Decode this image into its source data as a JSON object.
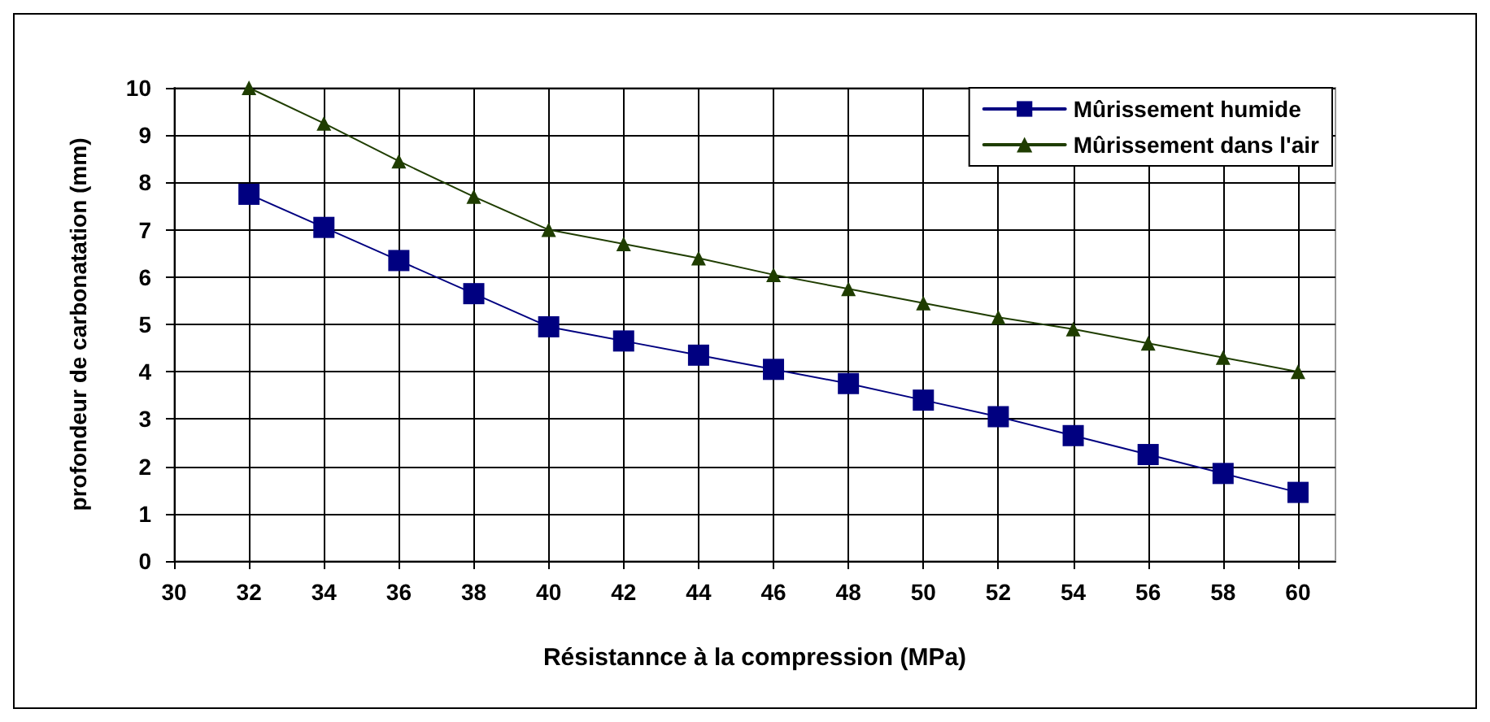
{
  "chart_data": {
    "type": "line",
    "xlabel": "Résistannce à la compression (MPa)",
    "ylabel": "profondeur de carbonatation (mm)",
    "x": [
      32,
      34,
      36,
      38,
      40,
      42,
      44,
      46,
      48,
      50,
      52,
      54,
      56,
      58,
      60
    ],
    "series": [
      {
        "name": "Mûrissement humide",
        "color": "#000080",
        "marker": "square",
        "values": [
          7.75,
          7.05,
          6.35,
          5.65,
          4.95,
          4.65,
          4.35,
          4.05,
          3.75,
          3.4,
          3.05,
          2.65,
          2.25,
          1.85,
          1.45
        ]
      },
      {
        "name": "Mûrissement dans l'air",
        "color": "#1f3d00",
        "marker": "triangle",
        "values": [
          10,
          9.25,
          8.45,
          7.7,
          7.0,
          6.7,
          6.4,
          6.05,
          5.75,
          5.45,
          5.15,
          4.9,
          4.6,
          4.3,
          4.0
        ]
      }
    ],
    "xlim": [
      30,
      61
    ],
    "xticks": [
      30,
      32,
      34,
      36,
      38,
      40,
      42,
      44,
      46,
      48,
      50,
      52,
      54,
      56,
      58,
      60
    ],
    "ylim": [
      0,
      10
    ],
    "yticks": [
      0,
      1,
      2,
      3,
      4,
      5,
      6,
      7,
      8,
      9,
      10
    ],
    "grid": true,
    "legend": "top right"
  }
}
